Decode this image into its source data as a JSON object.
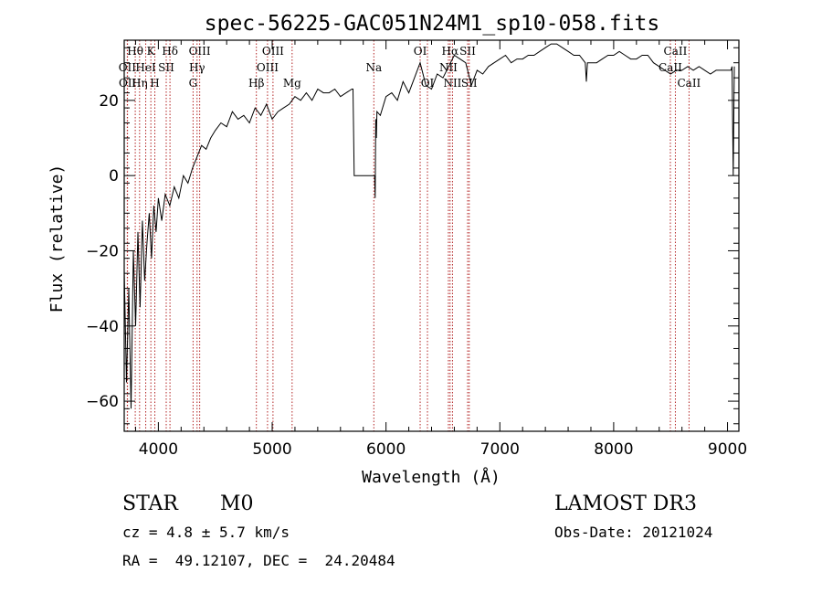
{
  "chart_data": {
    "type": "line",
    "title": "spec-56225-GAC051N24M1_sp10-058.fits",
    "xlabel": "Wavelength (Å)",
    "ylabel": "Flux (relative)",
    "xlim": [
      3700,
      9100
    ],
    "ylim": [
      -68,
      36
    ],
    "x_ticks": [
      4000,
      5000,
      6000,
      7000,
      8000,
      9000
    ],
    "x_tick_labels": [
      "4000",
      "5000",
      "6000",
      "7000",
      "8000",
      "9000"
    ],
    "y_ticks": [
      -60,
      -40,
      -20,
      0,
      20
    ],
    "y_tick_labels": [
      "−60",
      "−40",
      "−20",
      "0",
      "20"
    ],
    "line_color": "#000000",
    "marker_color": "#b22222",
    "series": [
      {
        "name": "flux",
        "x": [
          3700,
          3720,
          3740,
          3760,
          3780,
          3800,
          3820,
          3840,
          3860,
          3880,
          3900,
          3920,
          3940,
          3960,
          3980,
          4000,
          4030,
          4060,
          4100,
          4140,
          4180,
          4220,
          4260,
          4300,
          4340,
          4380,
          4420,
          4460,
          4500,
          4550,
          4600,
          4650,
          4700,
          4750,
          4800,
          4850,
          4900,
          4950,
          5000,
          5050,
          5100,
          5150,
          5200,
          5250,
          5300,
          5350,
          5400,
          5450,
          5500,
          5550,
          5600,
          5650,
          5700,
          5710,
          5720,
          5900,
          5905,
          5910,
          5915,
          5920,
          5950,
          6000,
          6050,
          6100,
          6150,
          6200,
          6250,
          6300,
          6350,
          6400,
          6450,
          6500,
          6550,
          6600,
          6650,
          6700,
          6750,
          6800,
          6850,
          6900,
          6950,
          7000,
          7050,
          7100,
          7150,
          7200,
          7250,
          7300,
          7350,
          7400,
          7450,
          7500,
          7550,
          7600,
          7650,
          7700,
          7750,
          7760,
          7770,
          7800,
          7850,
          7900,
          7950,
          8000,
          8050,
          8100,
          8150,
          8200,
          8250,
          8300,
          8350,
          8400,
          8450,
          8500,
          8550,
          8600,
          8650,
          8700,
          8750,
          8800,
          8850,
          8900,
          8950,
          9000,
          9030,
          9040,
          9050,
          9060
        ],
        "y": [
          -25,
          -55,
          -30,
          -62,
          -20,
          -40,
          -15,
          -35,
          -12,
          -28,
          -18,
          -10,
          -22,
          -8,
          -15,
          -6,
          -12,
          -5,
          -8,
          -3,
          -6,
          0,
          -2,
          2,
          5,
          8,
          7,
          10,
          12,
          14,
          13,
          17,
          15,
          16,
          14,
          18,
          16,
          19,
          15,
          17,
          18,
          19,
          21,
          20,
          22,
          20,
          23,
          22,
          22,
          23,
          21,
          22,
          23,
          23,
          0,
          0,
          -6,
          15,
          10,
          17,
          16,
          21,
          22,
          20,
          25,
          22,
          26,
          30,
          24,
          23,
          27,
          26,
          29,
          32,
          31,
          30,
          24,
          28,
          27,
          29,
          30,
          31,
          32,
          30,
          31,
          31,
          32,
          32,
          33,
          34,
          35,
          35,
          34,
          33,
          32,
          32,
          30,
          25,
          30,
          30,
          30,
          31,
          32,
          32,
          33,
          32,
          31,
          31,
          32,
          32,
          30,
          29,
          28,
          27,
          28,
          28,
          29,
          28,
          29,
          28,
          27,
          28,
          28,
          28,
          28,
          29,
          0,
          29
        ]
      }
    ],
    "lines": [
      {
        "name": "Hθ",
        "x": 3797,
        "row": 0
      },
      {
        "name": "OII",
        "x": 3727,
        "row": 1
      },
      {
        "name": "OII",
        "x": 3729,
        "row": 2
      },
      {
        "name": "Hη",
        "x": 3835,
        "row": 2
      },
      {
        "name": "HeI",
        "x": 3889,
        "row": 1
      },
      {
        "name": "K",
        "x": 3934,
        "row": 0
      },
      {
        "name": "H",
        "x": 3969,
        "row": 2
      },
      {
        "name": "SII",
        "x": 4069,
        "row": 1
      },
      {
        "name": "Hδ",
        "x": 4102,
        "row": 0
      },
      {
        "name": "OIII",
        "x": 4363,
        "row": 0
      },
      {
        "name": "Hγ",
        "x": 4340,
        "row": 1
      },
      {
        "name": "G",
        "x": 4305,
        "row": 2
      },
      {
        "name": "Hβ",
        "x": 4861,
        "row": 2
      },
      {
        "name": "OIII",
        "x": 4959,
        "row": 1
      },
      {
        "name": "OIII",
        "x": 5007,
        "row": 0
      },
      {
        "name": "Mg",
        "x": 5175,
        "row": 2
      },
      {
        "name": "Na",
        "x": 5893,
        "row": 1
      },
      {
        "name": "OI",
        "x": 6300,
        "row": 0
      },
      {
        "name": "OI",
        "x": 6364,
        "row": 2
      },
      {
        "name": "NII",
        "x": 6548,
        "row": 1
      },
      {
        "name": "NII",
        "x": 6584,
        "row": 2
      },
      {
        "name": "Hα",
        "x": 6563,
        "row": 0
      },
      {
        "name": "SII",
        "x": 6717,
        "row": 0
      },
      {
        "name": "SII",
        "x": 6731,
        "row": 2
      },
      {
        "name": "CaII",
        "x": 8498,
        "row": 1
      },
      {
        "name": "CaII",
        "x": 8542,
        "row": 0
      },
      {
        "name": "CaII",
        "x": 8662,
        "row": 2
      }
    ]
  },
  "info": {
    "class": "STAR",
    "subclass": "M0",
    "survey": "LAMOST DR3",
    "cz": "cz = 4.8 ± 5.7 km/s",
    "obs_date": "Obs-Date: 20121024",
    "radec": "RA =  49.12107, DEC =  24.20484"
  }
}
